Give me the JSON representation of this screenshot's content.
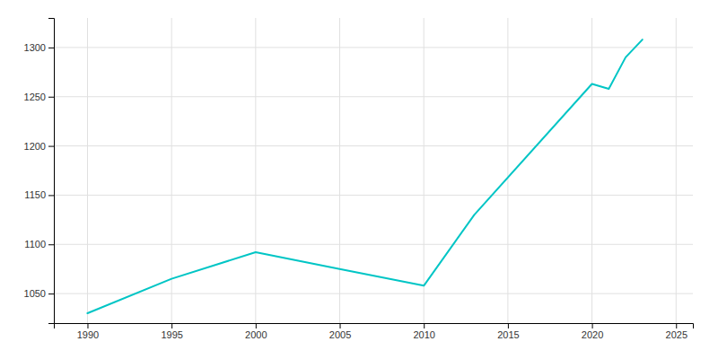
{
  "chart_data": {
    "type": "line",
    "x": [
      1990,
      1995,
      2000,
      2005,
      2010,
      2013,
      2020,
      2021,
      2022,
      2023
    ],
    "values": [
      1030,
      1065,
      1092,
      1075,
      1058,
      1130,
      1263,
      1258,
      1290,
      1308
    ],
    "color": "#00C5C5",
    "xlim": [
      1988,
      2026
    ],
    "ylim": [
      1020,
      1330
    ],
    "xticks": [
      1990,
      1995,
      2000,
      2005,
      2010,
      2015,
      2020,
      2025
    ],
    "yticks": [
      1050,
      1100,
      1150,
      1200,
      1250,
      1300
    ],
    "grid": true
  }
}
